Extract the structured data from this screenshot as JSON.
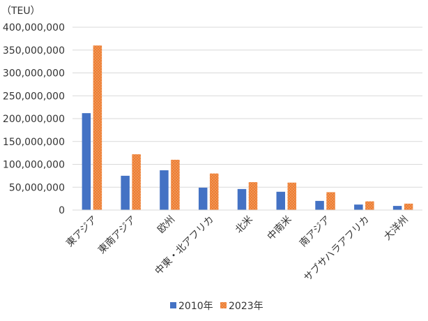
{
  "chart_data": {
    "type": "bar",
    "unit_label": "（TEU）",
    "categories": [
      "東アジア",
      "東南アジア",
      "欧州",
      "中東・北アフリカ",
      "北米",
      "中南米",
      "南アジア",
      "サブサハラアフリカ",
      "大洋州"
    ],
    "series": [
      {
        "name": "2010年",
        "color": "#4472C4",
        "values": [
          212000000,
          75000000,
          87000000,
          49000000,
          46000000,
          40000000,
          20000000,
          12000000,
          9000000
        ]
      },
      {
        "name": "2023年",
        "color": "#ED7D31",
        "values": [
          360000000,
          122000000,
          110000000,
          80000000,
          61000000,
          60000000,
          39000000,
          19000000,
          14000000
        ]
      }
    ],
    "ylim": [
      0,
      400000000
    ],
    "yticks": [
      0,
      50000000,
      100000000,
      150000000,
      200000000,
      250000000,
      300000000,
      350000000,
      400000000
    ],
    "ytick_labels": [
      "0",
      "50,000,000",
      "100,000,000",
      "150,000,000",
      "200,000,000",
      "250,000,000",
      "300,000,000",
      "350,000,000",
      "400,000,000"
    ],
    "grid": true,
    "legend_position": "bottom"
  }
}
